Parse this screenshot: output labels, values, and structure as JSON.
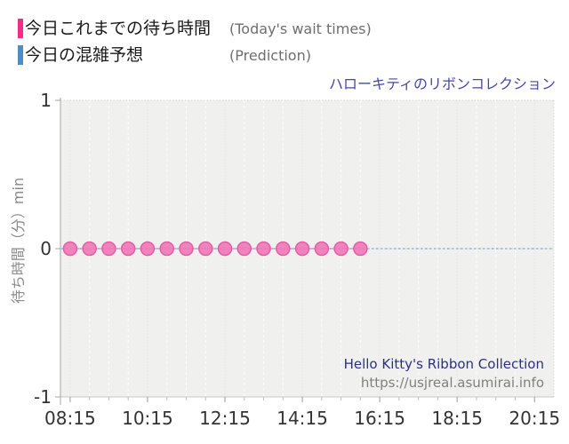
{
  "legend": {
    "items": [
      {
        "label_jp": "今日これまでの待ち時間",
        "label_en": "(Today's wait times)",
        "color": "#f52d87"
      },
      {
        "label_jp": "今日の混雑予想",
        "label_en": "(Prediction)",
        "color": "#4d8dc2"
      }
    ]
  },
  "title": "ハローキティのリボンコレクション",
  "footer": {
    "name": "Hello Kitty's Ribbon Collection",
    "url": "https://usjreal.asumirai.info"
  },
  "chart_data": {
    "type": "line",
    "title": "ハローキティのリボンコレクション",
    "ylabel": "待ち時間（分）min",
    "ylim": [
      -1,
      1
    ],
    "yticks": [
      1,
      0,
      -1
    ],
    "xticks": [
      "08:15",
      "10:15",
      "12:15",
      "14:15",
      "16:15",
      "18:15",
      "20:15"
    ],
    "xlim": [
      "08:00",
      "20:45"
    ],
    "x_minor_interval_minutes": 30,
    "grid": true,
    "legend_position": "top-left outside plot",
    "series": [
      {
        "name": "今日これまでの待ち時間 (Today's wait times)",
        "line_style": "solid+markers",
        "marker_color": "#f077b7",
        "x": [
          "08:15",
          "08:45",
          "09:15",
          "09:45",
          "10:15",
          "10:45",
          "11:15",
          "11:45",
          "12:15",
          "12:45",
          "13:15",
          "13:45",
          "14:15",
          "14:45",
          "15:15",
          "15:45"
        ],
        "values": [
          0,
          0,
          0,
          0,
          0,
          0,
          0,
          0,
          0,
          0,
          0,
          0,
          0,
          0,
          0,
          0
        ]
      },
      {
        "name": "今日の混雑予想 (Prediction)",
        "line_style": "dashed",
        "color": "#a9c7e2",
        "x": [
          "08:00",
          "20:45"
        ],
        "values": [
          0,
          0
        ]
      }
    ]
  }
}
